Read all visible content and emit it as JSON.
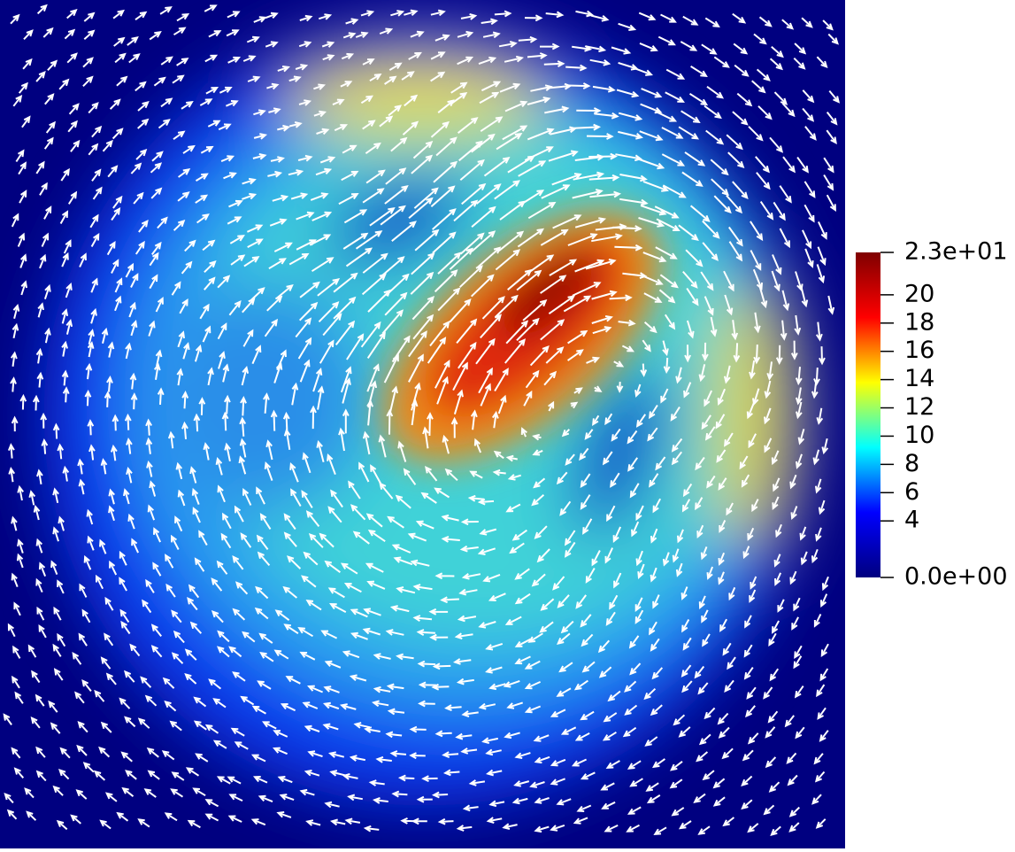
{
  "chart_data": {
    "type": "vector-field",
    "colormap": [
      "#00007f",
      "#0000ff",
      "#00ffff",
      "#ffff00",
      "#ff0000",
      "#7f0000"
    ],
    "ylim": [
      0,
      23
    ],
    "yticks": [
      {
        "value": 0,
        "label": "0.0e+00"
      },
      4,
      6,
      8,
      10,
      12,
      14,
      16,
      18,
      20,
      {
        "value": 23,
        "label": "2.3e+01"
      }
    ]
  }
}
